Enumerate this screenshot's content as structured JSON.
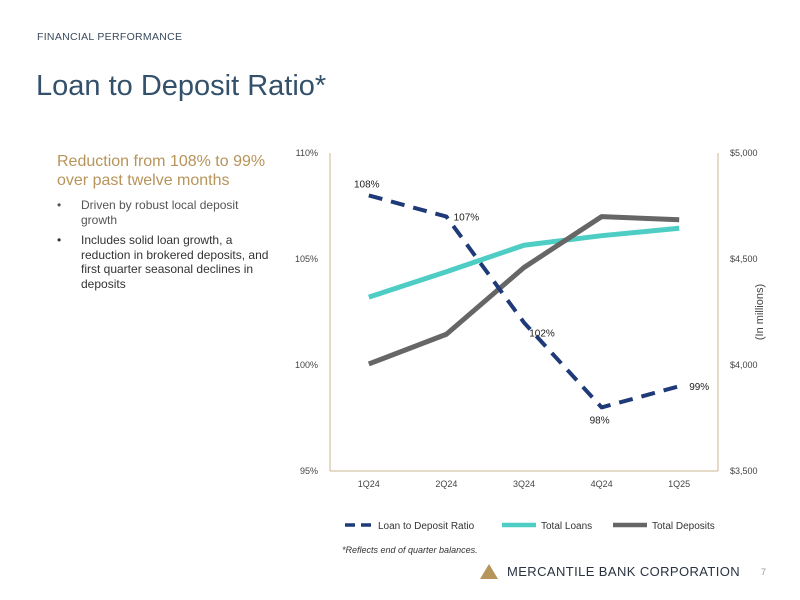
{
  "header": {
    "section_label": "FINANCIAL PERFORMANCE",
    "title": "Loan to Deposit Ratio*"
  },
  "sidebar": {
    "headline": "Reduction from 108% to 99% over past twelve months",
    "bullets": [
      "Driven by robust local deposit growth",
      "Includes solid loan growth, a reduction in brokered deposits, and first quarter seasonal declines in deposits"
    ],
    "bullet_glyph": "•"
  },
  "chart_data": {
    "type": "line",
    "categories": [
      "1Q24",
      "2Q24",
      "3Q24",
      "4Q24",
      "1Q25"
    ],
    "series": [
      {
        "name": "Loan to Deposit Ratio",
        "axis": "left",
        "values": [
          108,
          107,
          102,
          98,
          99
        ],
        "data_labels": [
          "108%",
          "107%",
          "102%",
          "98%",
          "99%"
        ],
        "color": "#1f3a78",
        "style": "dashed"
      },
      {
        "name": "Total Loans",
        "axis": "right",
        "values": [
          4320,
          4440,
          4565,
          4610,
          4645
        ],
        "color": "#4ecdc4",
        "style": "solid"
      },
      {
        "name": "Total Deposits",
        "axis": "right",
        "values": [
          4005,
          4145,
          4460,
          4700,
          4685
        ],
        "color": "#666666",
        "style": "solid"
      }
    ],
    "left_axis": {
      "min": 95,
      "max": 110,
      "ticks": [
        95,
        100,
        105,
        110
      ],
      "tick_labels": [
        "95%",
        "100%",
        "105%",
        "110%"
      ]
    },
    "right_axis": {
      "min": 3500,
      "max": 5000,
      "ticks": [
        3500,
        4000,
        4500,
        5000
      ],
      "tick_labels": [
        "$3,500",
        "$4,000",
        "$4,500",
        "$5,000"
      ],
      "label": "(In millions)"
    },
    "grid": false,
    "legend_position": "bottom"
  },
  "footnote": "*Reflects end of quarter balances.",
  "footer": {
    "company": "MERCANTILE BANK CORPORATION",
    "page_number": "7",
    "logo_color": "#b7945a"
  }
}
